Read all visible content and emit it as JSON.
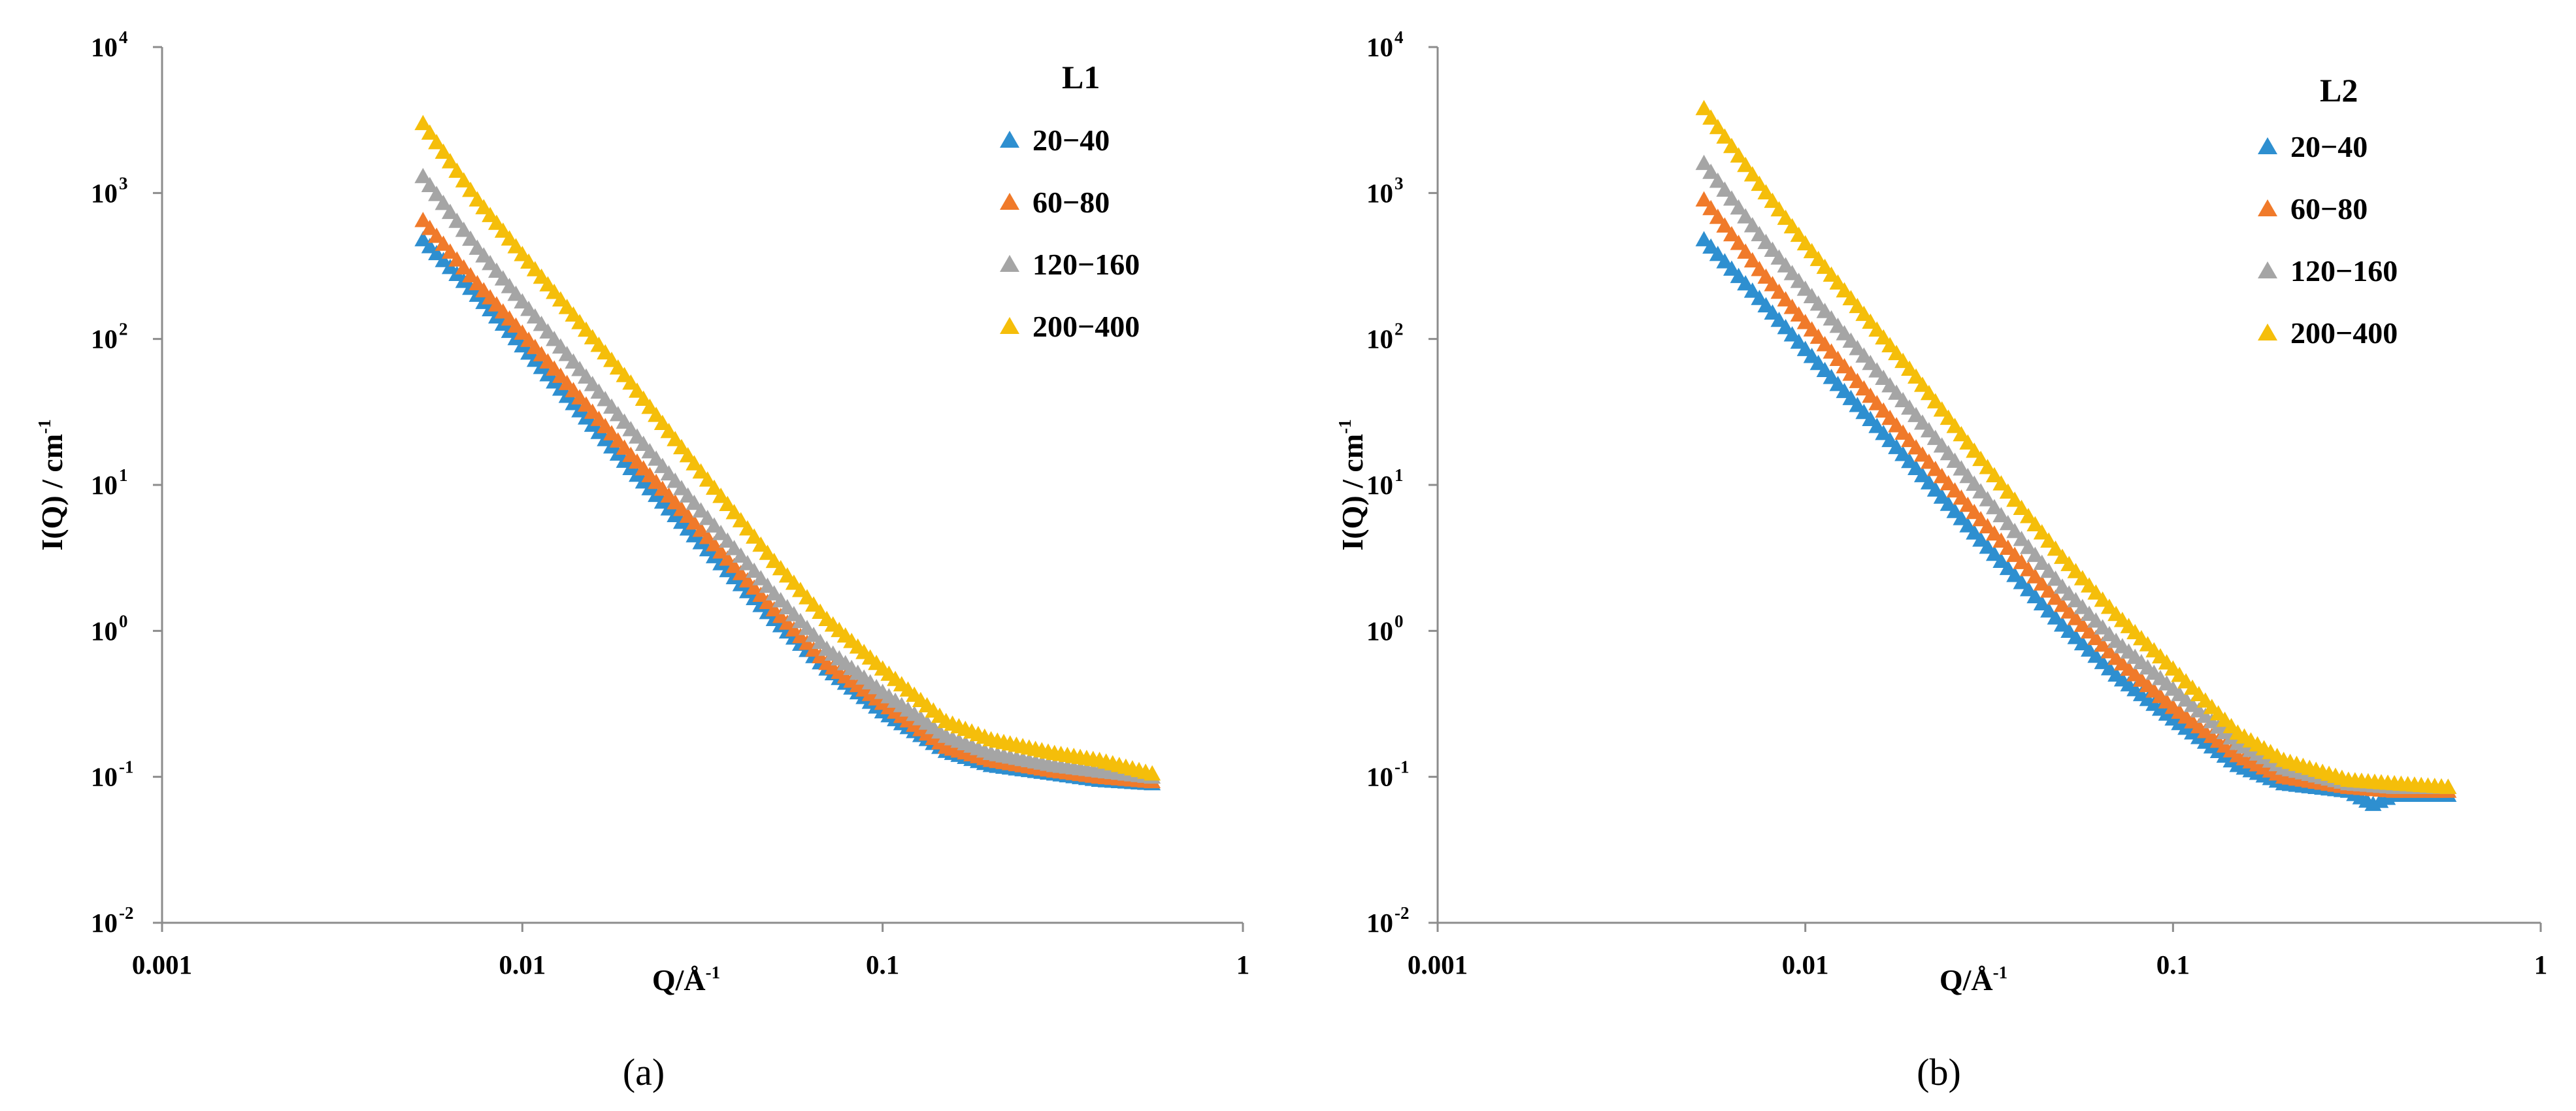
{
  "chart_data": [
    {
      "type": "scatter",
      "panel_label": "(a)",
      "legend_title": "L1",
      "xlabel": "Q/Å",
      "xlabel_sup": "-1",
      "ylabel": "I(Q) / cm",
      "ylabel_sup": "-1",
      "x_scale": "log",
      "y_scale": "log",
      "xlim": [
        0.001,
        1
      ],
      "ylim": [
        0.01,
        10000
      ],
      "x_ticks": [
        "0.001",
        "0.01",
        "0.1",
        "1"
      ],
      "y_ticks": [
        {
          "base": "10",
          "exp": "-2"
        },
        {
          "base": "10",
          "exp": "-1"
        },
        {
          "base": "10",
          "exp": "0"
        },
        {
          "base": "10",
          "exp": "1"
        },
        {
          "base": "10",
          "exp": "2"
        },
        {
          "base": "10",
          "exp": "3"
        },
        {
          "base": "10",
          "exp": "4"
        }
      ],
      "grid": false,
      "legend_position": "top-right",
      "marker": "triangle",
      "series": [
        {
          "name": "20−40",
          "color": "#2E8FD0",
          "points": [
            [
              0.0053,
              480
            ],
            [
              0.0075,
              200
            ],
            [
              0.01,
              90
            ],
            [
              0.02,
              13
            ],
            [
              0.03,
              4.5
            ],
            [
              0.05,
              1.2
            ],
            [
              0.07,
              0.55
            ],
            [
              0.1,
              0.28
            ],
            [
              0.15,
              0.15
            ],
            [
              0.2,
              0.12
            ],
            [
              0.3,
              0.105
            ],
            [
              0.4,
              0.095
            ],
            [
              0.56,
              0.09
            ]
          ]
        },
        {
          "name": "60−80",
          "color": "#F07A2A",
          "points": [
            [
              0.0053,
              650
            ],
            [
              0.0075,
              240
            ],
            [
              0.01,
              110
            ],
            [
              0.02,
              16
            ],
            [
              0.03,
              5.5
            ],
            [
              0.05,
              1.4
            ],
            [
              0.07,
              0.6
            ],
            [
              0.1,
              0.32
            ],
            [
              0.15,
              0.16
            ],
            [
              0.2,
              0.13
            ],
            [
              0.3,
              0.11
            ],
            [
              0.4,
              0.1
            ],
            [
              0.56,
              0.093
            ]
          ]
        },
        {
          "name": "120−160",
          "color": "#A5A5A5",
          "points": [
            [
              0.0053,
              1300
            ],
            [
              0.0075,
              420
            ],
            [
              0.01,
              180
            ],
            [
              0.02,
              24
            ],
            [
              0.03,
              7.5
            ],
            [
              0.05,
              1.8
            ],
            [
              0.07,
              0.75
            ],
            [
              0.1,
              0.38
            ],
            [
              0.15,
              0.19
            ],
            [
              0.2,
              0.145
            ],
            [
              0.3,
              0.12
            ],
            [
              0.4,
              0.11
            ],
            [
              0.56,
              0.1
            ]
          ]
        },
        {
          "name": "200−400",
          "color": "#F5BE0A",
          "points": [
            [
              0.0053,
              3000
            ],
            [
              0.0075,
              900
            ],
            [
              0.01,
              380
            ],
            [
              0.02,
              50
            ],
            [
              0.03,
              14
            ],
            [
              0.05,
              3
            ],
            [
              0.07,
              1.2
            ],
            [
              0.1,
              0.55
            ],
            [
              0.15,
              0.24
            ],
            [
              0.2,
              0.18
            ],
            [
              0.3,
              0.145
            ],
            [
              0.4,
              0.13
            ],
            [
              0.56,
              0.105
            ]
          ]
        }
      ]
    },
    {
      "type": "scatter",
      "panel_label": "(b)",
      "legend_title": "L2",
      "xlabel": "Q/Å",
      "xlabel_sup": "-1",
      "ylabel": "I(Q) / cm",
      "ylabel_sup": "-1",
      "x_scale": "log",
      "y_scale": "log",
      "xlim": [
        0.001,
        1
      ],
      "ylim": [
        0.01,
        10000
      ],
      "x_ticks": [
        "0.001",
        "0.01",
        "0.1",
        "1"
      ],
      "y_ticks": [
        {
          "base": "10",
          "exp": "-2"
        },
        {
          "base": "10",
          "exp": "-1"
        },
        {
          "base": "10",
          "exp": "0"
        },
        {
          "base": "10",
          "exp": "1"
        },
        {
          "base": "10",
          "exp": "2"
        },
        {
          "base": "10",
          "exp": "3"
        },
        {
          "base": "10",
          "exp": "4"
        }
      ],
      "grid": false,
      "legend_position": "top-right",
      "marker": "triangle",
      "series": [
        {
          "name": "20−40",
          "color": "#2E8FD0",
          "points": [
            [
              0.0053,
              480
            ],
            [
              0.0075,
              190
            ],
            [
              0.01,
              85
            ],
            [
              0.02,
              13
            ],
            [
              0.03,
              4.2
            ],
            [
              0.05,
              1.1
            ],
            [
              0.07,
              0.5
            ],
            [
              0.1,
              0.25
            ],
            [
              0.15,
              0.12
            ],
            [
              0.2,
              0.09
            ],
            [
              0.3,
              0.08
            ],
            [
              0.35,
              0.065
            ],
            [
              0.4,
              0.075
            ],
            [
              0.56,
              0.075
            ]
          ]
        },
        {
          "name": "60−80",
          "color": "#F07A2A",
          "points": [
            [
              0.0053,
              900
            ],
            [
              0.0075,
              300
            ],
            [
              0.01,
              130
            ],
            [
              0.02,
              18
            ],
            [
              0.03,
              5.8
            ],
            [
              0.05,
              1.5
            ],
            [
              0.07,
              0.65
            ],
            [
              0.1,
              0.3
            ],
            [
              0.15,
              0.14
            ],
            [
              0.2,
              0.1
            ],
            [
              0.3,
              0.085
            ],
            [
              0.4,
              0.08
            ],
            [
              0.56,
              0.08
            ]
          ]
        },
        {
          "name": "120−160",
          "color": "#A5A5A5",
          "points": [
            [
              0.0053,
              1600
            ],
            [
              0.0075,
              520
            ],
            [
              0.01,
              220
            ],
            [
              0.02,
              30
            ],
            [
              0.03,
              9
            ],
            [
              0.05,
              2
            ],
            [
              0.07,
              0.85
            ],
            [
              0.1,
              0.4
            ],
            [
              0.15,
              0.17
            ],
            [
              0.2,
              0.115
            ],
            [
              0.3,
              0.09
            ],
            [
              0.4,
              0.085
            ],
            [
              0.56,
              0.085
            ]
          ]
        },
        {
          "name": "200−400",
          "color": "#F5BE0A",
          "points": [
            [
              0.0053,
              3800
            ],
            [
              0.0075,
              1150
            ],
            [
              0.01,
              450
            ],
            [
              0.02,
              55
            ],
            [
              0.03,
              15
            ],
            [
              0.05,
              3.2
            ],
            [
              0.07,
              1.3
            ],
            [
              0.1,
              0.55
            ],
            [
              0.15,
              0.2
            ],
            [
              0.2,
              0.13
            ],
            [
              0.3,
              0.095
            ],
            [
              0.4,
              0.09
            ],
            [
              0.56,
              0.085
            ]
          ]
        }
      ]
    }
  ]
}
